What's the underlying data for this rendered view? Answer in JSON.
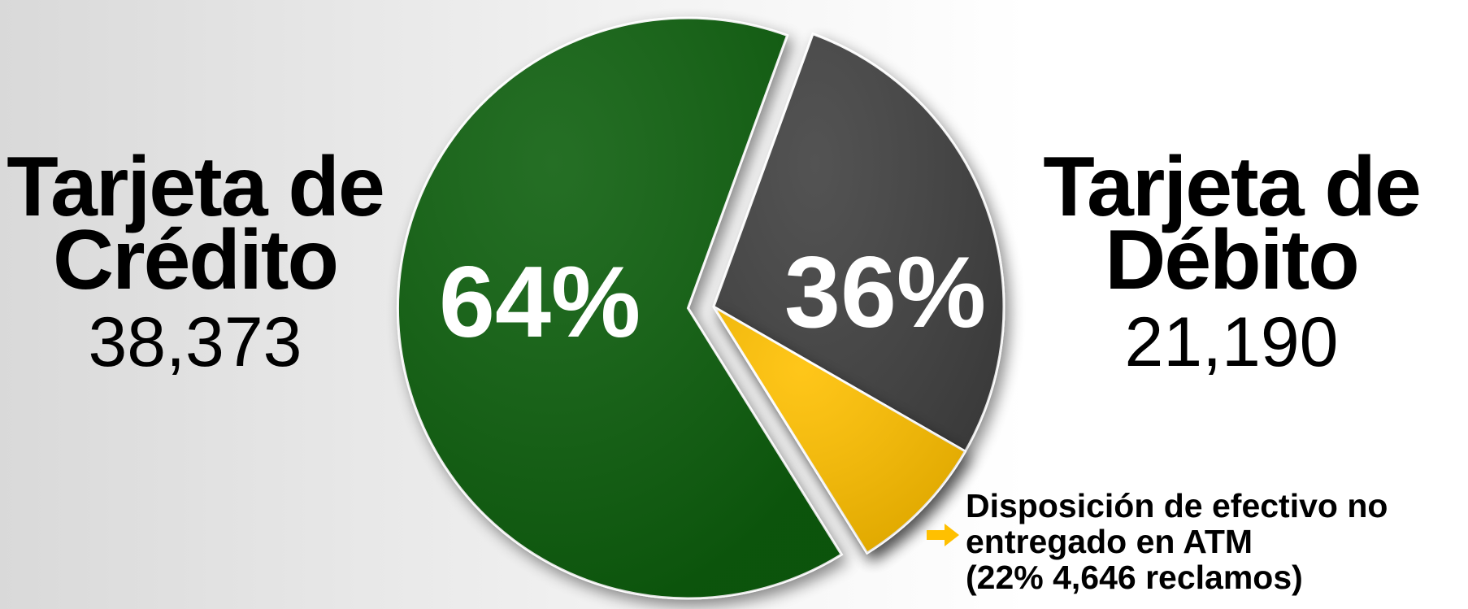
{
  "chart_data": {
    "type": "pie",
    "slices": [
      {
        "label_line1": "Tarjeta de",
        "label_line2": "Crédito",
        "count": "38,373",
        "value": 38373,
        "percent": 64,
        "percent_label": "64%",
        "color": "#0a5e0a"
      },
      {
        "label_line1": "Tarjeta de",
        "label_line2": "Débito",
        "count": "21,190",
        "value": 21190,
        "percent": 36,
        "percent_label": "36%",
        "color": "#404040",
        "sub_slice": {
          "value": 4646,
          "fraction_of_parent": 0.22,
          "color": "#ffc000",
          "note_lines": [
            "Disposición de efectivo no",
            "entregado en ATM",
            "(22% 4,646 reclamos)"
          ]
        }
      }
    ]
  },
  "colors": {
    "arrow": "#ffc000",
    "text": "#000000",
    "percent_text": "#ffffff"
  }
}
